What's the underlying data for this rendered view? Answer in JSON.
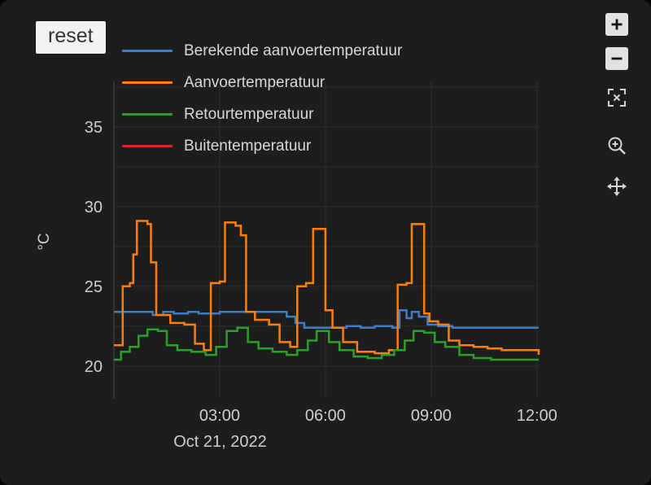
{
  "controls": {
    "reset_label": "reset"
  },
  "toolbar": {
    "buttons": [
      {
        "id": "zoom-in",
        "icon": "plus-icon"
      },
      {
        "id": "zoom-out",
        "icon": "minus-icon"
      },
      {
        "id": "autoscale",
        "icon": "expand-icon"
      },
      {
        "id": "zoom-mode",
        "icon": "magnifier-plus-icon"
      },
      {
        "id": "pan-mode",
        "icon": "move-arrows-icon"
      }
    ]
  },
  "chart_data": {
    "type": "line",
    "line_shape": "steps-hv",
    "title": "",
    "ylabel": "°C",
    "x_axis_date": "Oct 21, 2022",
    "x_unit": "hours-of-day",
    "xlim_hours": [
      0,
      12.05
    ],
    "ylim": [
      17.95,
      37.85
    ],
    "grid": true,
    "legend_position": "top-left-vertical",
    "x_ticks": [
      {
        "value": 3,
        "label": "03:00"
      },
      {
        "value": 6,
        "label": "06:00"
      },
      {
        "value": 9,
        "label": "09:00"
      },
      {
        "value": 12,
        "label": "12:00"
      }
    ],
    "y_ticks": [
      {
        "value": 20,
        "label": "20"
      },
      {
        "value": 25,
        "label": "25"
      },
      {
        "value": 30,
        "label": "30"
      },
      {
        "value": 35,
        "label": "35"
      }
    ],
    "y_minor_gridlines": [
      22.5,
      27.5,
      32.5,
      37.5
    ],
    "colors": {
      "grid": "#2e2e2e",
      "axis_line": "#3d3d3d",
      "tick_text": "#cfcfcf"
    },
    "series": [
      {
        "name": "Berekende aanvoertemperatuur",
        "color": "#3d7dca",
        "x": [
          0,
          0.8,
          1.1,
          1.4,
          1.7,
          2.1,
          2.4,
          3.0,
          4.6,
          4.9,
          5.15,
          5.4,
          6.3,
          6.6,
          7.0,
          7.4,
          7.9,
          8.1,
          8.3,
          8.45,
          8.65,
          8.9,
          9.2,
          9.6,
          12.05
        ],
        "y": [
          23.4,
          23.4,
          23.2,
          23.4,
          23.3,
          23.4,
          23.3,
          23.4,
          23.4,
          23.1,
          22.7,
          22.4,
          22.4,
          22.5,
          22.4,
          22.5,
          22.4,
          23.5,
          23.0,
          23.4,
          23.1,
          22.6,
          22.5,
          22.4,
          22.4
        ]
      },
      {
        "name": "Aanvoertemperatuur",
        "color": "#ff7f0e",
        "x": [
          0,
          0.25,
          0.45,
          0.55,
          0.65,
          0.95,
          1.05,
          1.2,
          1.6,
          2.0,
          2.3,
          2.55,
          2.75,
          3.0,
          3.15,
          3.45,
          3.6,
          3.75,
          4.0,
          4.4,
          4.7,
          5.0,
          5.2,
          5.45,
          5.65,
          6.0,
          6.2,
          6.5,
          6.9,
          7.4,
          7.8,
          8.05,
          8.3,
          8.45,
          8.8,
          8.95,
          9.2,
          9.5,
          9.8,
          10.2,
          10.6,
          11.0,
          11.6,
          12.05
        ],
        "y": [
          21.3,
          25.0,
          25.2,
          27.0,
          29.1,
          28.9,
          26.5,
          23.2,
          22.7,
          22.6,
          21.4,
          21.0,
          25.2,
          25.3,
          29.0,
          28.8,
          28.2,
          23.4,
          22.9,
          22.6,
          21.5,
          21.2,
          25.0,
          25.2,
          28.6,
          23.5,
          22.4,
          21.5,
          20.9,
          20.8,
          21.0,
          25.1,
          25.2,
          28.9,
          23.3,
          22.8,
          22.6,
          21.6,
          21.3,
          21.2,
          21.1,
          21.0,
          21.0,
          20.7
        ]
      },
      {
        "name": "Retourtemperatuur",
        "color": "#2ca02c",
        "x": [
          0,
          0.2,
          0.45,
          0.7,
          0.95,
          1.25,
          1.5,
          1.8,
          2.2,
          2.6,
          2.9,
          3.2,
          3.5,
          3.8,
          4.1,
          4.5,
          4.9,
          5.2,
          5.5,
          5.75,
          6.1,
          6.4,
          6.8,
          7.2,
          7.6,
          7.95,
          8.25,
          8.5,
          8.8,
          9.1,
          9.4,
          9.8,
          10.2,
          10.7,
          11.2,
          12.05
        ],
        "y": [
          20.4,
          20.9,
          21.2,
          21.9,
          22.3,
          22.2,
          21.3,
          21.0,
          20.9,
          20.7,
          21.2,
          22.2,
          22.4,
          21.5,
          21.1,
          20.9,
          20.7,
          21.0,
          21.6,
          22.2,
          21.5,
          21.0,
          20.6,
          20.5,
          20.7,
          21.0,
          21.6,
          22.2,
          22.1,
          21.5,
          21.2,
          20.7,
          20.5,
          20.4,
          20.4,
          20.4
        ],
        "note": ""
      },
      {
        "name": "Buitentemperatuur",
        "color": "#d62728",
        "x": [],
        "y": [],
        "note": "line not visible within y-axis range"
      }
    ]
  }
}
